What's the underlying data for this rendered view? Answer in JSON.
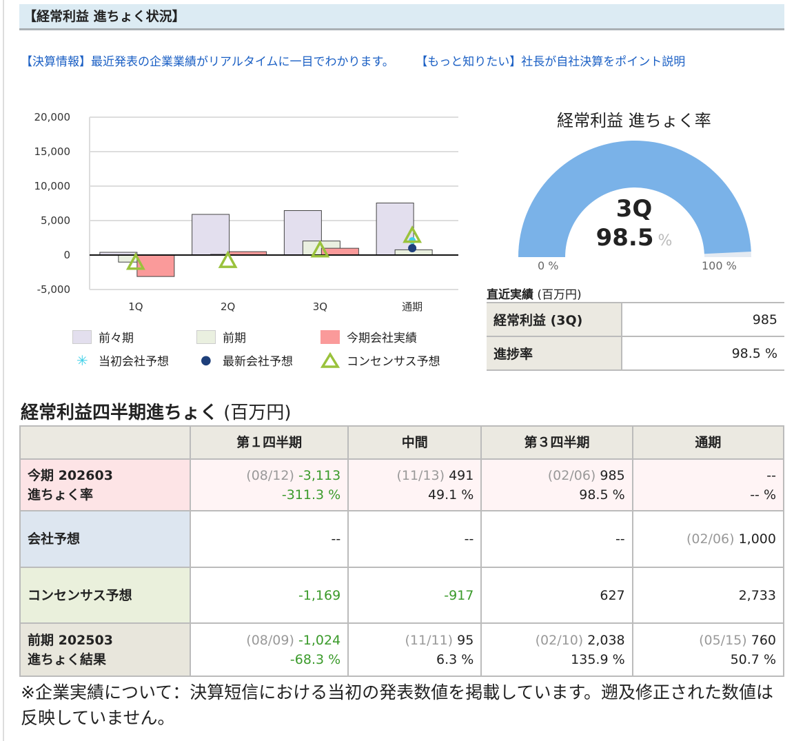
{
  "header": {
    "title": "【経常利益 進ちょく状況】"
  },
  "links": [
    "【決算情報】最近発表の企業業績がリアルタイムに一目でわかります。",
    "【もっと知りたい】社長が自社決算をポイント説明"
  ],
  "chart_data": {
    "type": "bar",
    "categories": [
      "1Q",
      "2Q",
      "3Q",
      "通期"
    ],
    "ylim": [
      -5000,
      20000
    ],
    "yticks": [
      "20,000",
      "15,000",
      "10,000",
      "5,000",
      "0",
      "-5,000"
    ],
    "ytick_values": [
      20000,
      15000,
      10000,
      5000,
      0,
      -5000
    ],
    "grid": true,
    "legend_placement": "bottom",
    "series": [
      {
        "name": "前々期",
        "type": "bar",
        "color": "#e3dfee",
        "values": [
          400,
          5900,
          6450,
          7550
        ]
      },
      {
        "name": "前期",
        "type": "bar",
        "color": "#eaf0e0",
        "values": [
          -1024,
          95,
          2038,
          760
        ]
      },
      {
        "name": "今期会社実績",
        "type": "bar",
        "color": "#fa9a9a",
        "values": [
          -3113,
          491,
          985,
          null
        ]
      },
      {
        "name": "当初会社予想",
        "type": "marker",
        "marker": "star",
        "color": "#3fd0e8",
        "values": [
          null,
          null,
          null,
          2100
        ]
      },
      {
        "name": "最新会社予想",
        "type": "marker",
        "marker": "dot",
        "color": "#1e3f7a",
        "values": [
          null,
          null,
          null,
          1000
        ]
      },
      {
        "name": "コンセンサス予想",
        "type": "marker",
        "marker": "triangle",
        "color": "#9ac23c",
        "values": [
          -1169,
          -917,
          627,
          2733
        ]
      }
    ]
  },
  "gauge": {
    "title": "経常利益 進ちょく率",
    "period": "3Q",
    "value": "98.5",
    "unit": "%",
    "fraction": 0.985,
    "min_label": "0 %",
    "max_label": "100 %",
    "color": "#7ab2e8"
  },
  "recent": {
    "title": "直近実績",
    "unit": "(百万円)",
    "rows": [
      {
        "label": "経常利益 (3Q)",
        "value": "985"
      },
      {
        "label": "進捗率",
        "value": "98.5 %"
      }
    ]
  },
  "quarterly": {
    "title": "経常利益四半期進ちょく",
    "unit": "(百万円)",
    "columns": [
      "",
      "第１四半期",
      "中間",
      "第３四半期",
      "通期"
    ],
    "rows": [
      {
        "label1": "今期 202603",
        "label2": "進ちょく率",
        "cells": [
          {
            "date": "(08/12)",
            "value": "-3,113",
            "rate": "-311.3 %"
          },
          {
            "date": "(11/13)",
            "value": "491",
            "rate": "49.1 %"
          },
          {
            "date": "(02/06)",
            "value": "985",
            "rate": "98.5 %"
          },
          {
            "date": "",
            "value": "--",
            "rate": "-- %"
          }
        ]
      },
      {
        "label1": "会社予想",
        "cells": [
          {
            "date": "",
            "value": "--"
          },
          {
            "date": "",
            "value": "--"
          },
          {
            "date": "",
            "value": "--"
          },
          {
            "date": "(02/06)",
            "value": "1,000"
          }
        ]
      },
      {
        "label1": "コンセンサス予想",
        "cells": [
          {
            "value": "-1,169"
          },
          {
            "value": "-917"
          },
          {
            "value": "627"
          },
          {
            "value": "2,733"
          }
        ]
      },
      {
        "label1": "前期 202503",
        "label2": "進ちょく結果",
        "cells": [
          {
            "date": "(08/09)",
            "value": "-1,024",
            "rate": "-68.3 %"
          },
          {
            "date": "(11/11)",
            "value": "95",
            "rate": "6.3 %"
          },
          {
            "date": "(02/10)",
            "value": "2,038",
            "rate": "135.9 %"
          },
          {
            "date": "(05/15)",
            "value": "760",
            "rate": "50.7 %"
          }
        ]
      }
    ]
  },
  "note": "※企業実績について：決算短信における当初の発表数値を掲載しています。遡及修正された数値は反映していません。"
}
